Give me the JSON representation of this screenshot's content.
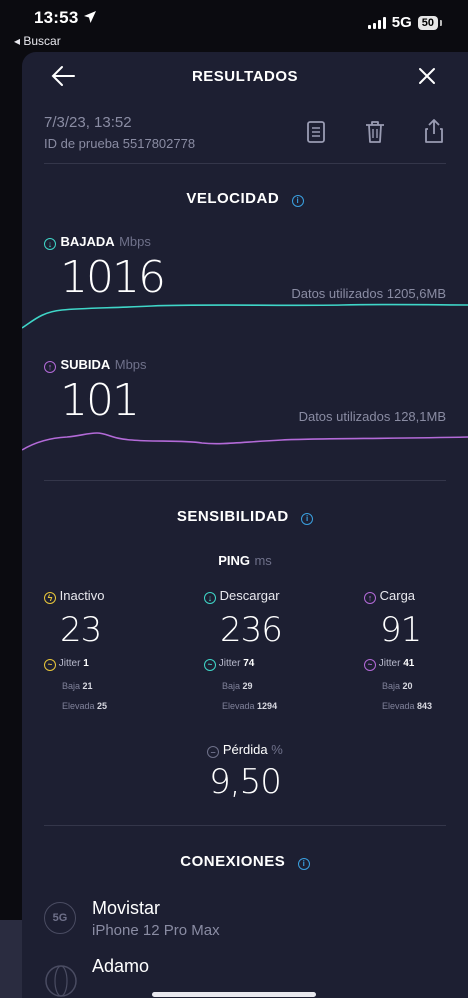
{
  "statusbar": {
    "time": "13:53",
    "back_label": "Buscar",
    "network": "5G",
    "battery": "50"
  },
  "header": {
    "title": "RESULTADOS"
  },
  "test": {
    "datetime": "7/3/23, 13:52",
    "id_label": "ID de prueba 5517802778"
  },
  "velocidad": {
    "title": "VELOCIDAD",
    "download": {
      "label": "BAJADA",
      "unit": "Mbps",
      "value": "1016",
      "data_used": "Datos utilizados 1205,6MB"
    },
    "upload": {
      "label": "SUBIDA",
      "unit": "Mbps",
      "value": "101",
      "data_used": "Datos utilizados 128,1MB"
    }
  },
  "sensibilidad": {
    "title": "SENSIBILIDAD",
    "ping_label": "PING",
    "ping_unit": "ms",
    "columns": [
      {
        "label": "Inactivo",
        "value": "23",
        "jitter_label": "Jitter",
        "jitter": "1",
        "low_label": "Baja",
        "low": "21",
        "high_label": "Elevada",
        "high": "25"
      },
      {
        "label": "Descargar",
        "value": "236",
        "jitter_label": "Jitter",
        "jitter": "74",
        "low_label": "Baja",
        "low": "29",
        "high_label": "Elevada",
        "high": "1294"
      },
      {
        "label": "Carga",
        "value": "91",
        "jitter_label": "Jitter",
        "jitter": "41",
        "low_label": "Baja",
        "low": "20",
        "high_label": "Elevada",
        "high": "843"
      }
    ],
    "loss": {
      "label": "Pérdida",
      "unit": "%",
      "value": "9,50"
    }
  },
  "conexiones": {
    "title": "CONEXIONES",
    "items": [
      {
        "badge": "5G",
        "name": "Movistar",
        "sub": "iPhone 12 Pro Max"
      },
      {
        "name": "Adamo"
      }
    ]
  },
  "colors": {
    "download": "#3fd6c8",
    "upload": "#b36ad8",
    "idle": "#e8c63a",
    "info": "#3aa0e0",
    "background": "#1d1f32"
  }
}
